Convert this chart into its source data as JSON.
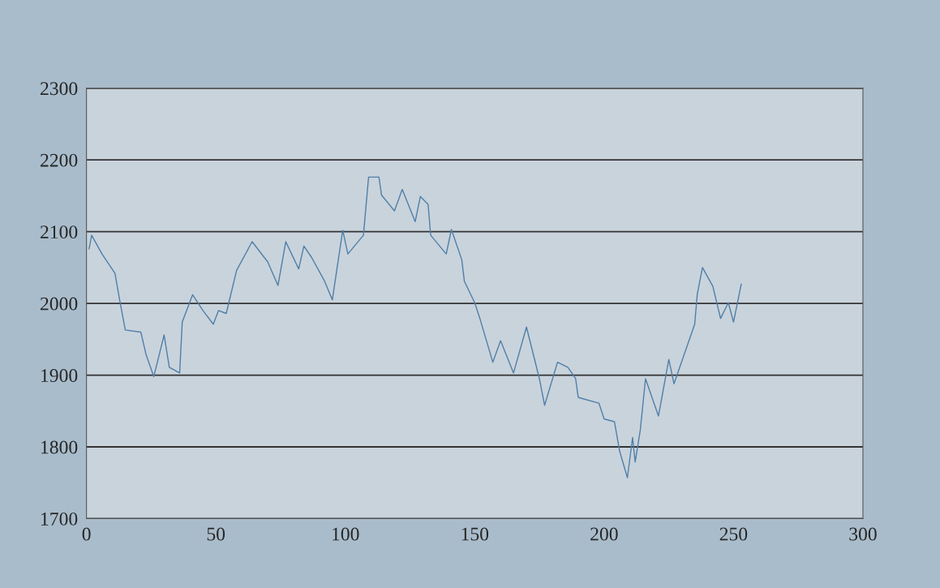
{
  "chart_data": {
    "type": "line",
    "x": [
      1,
      2,
      6,
      11,
      13,
      15,
      21,
      23,
      26,
      30,
      32,
      36,
      37,
      41,
      45,
      49,
      51,
      54,
      58,
      64,
      70,
      74,
      77,
      82,
      84,
      87,
      92,
      95,
      99,
      101,
      107,
      109,
      113,
      114,
      119,
      122,
      127,
      129,
      132,
      133,
      139,
      141,
      145,
      146,
      150,
      152,
      157,
      160,
      165,
      170,
      175,
      177,
      182,
      186,
      189,
      190,
      198,
      200,
      204,
      206,
      209,
      211,
      212,
      214,
      216,
      221,
      225,
      227,
      232,
      235,
      236,
      238,
      242,
      245,
      248,
      250,
      253
    ],
    "series": [
      {
        "color": "#4f7fa8",
        "values": [
          2076,
          2095,
          2069,
          2042,
          2001,
          1963,
          1960,
          1929,
          1898,
          1956,
          1911,
          1903,
          1974,
          2012,
          1990,
          1971,
          1990,
          1986,
          2046,
          2086,
          2058,
          2025,
          2086,
          2048,
          2080,
          2064,
          2031,
          2005,
          2102,
          2069,
          2095,
          2176,
          2176,
          2151,
          2129,
          2159,
          2114,
          2149,
          2138,
          2095,
          2069,
          2103,
          2061,
          2031,
          2001,
          1979,
          1918,
          1948,
          1903,
          1967,
          1895,
          1858,
          1918,
          1911,
          1895,
          1869,
          1861,
          1839,
          1835,
          1794,
          1757,
          1813,
          1779,
          1824,
          1895,
          1843,
          1922,
          1888,
          1940,
          1971,
          2013,
          2050,
          2024,
          1979,
          2001,
          1974,
          2027
        ]
      }
    ],
    "xlim": [
      0,
      300
    ],
    "xticks": [
      0,
      50,
      100,
      150,
      200,
      250,
      300
    ],
    "ylim": [
      1700,
      2300
    ],
    "yticks": [
      1700,
      1800,
      1900,
      2000,
      2100,
      2200,
      2300
    ],
    "grid": "y"
  }
}
